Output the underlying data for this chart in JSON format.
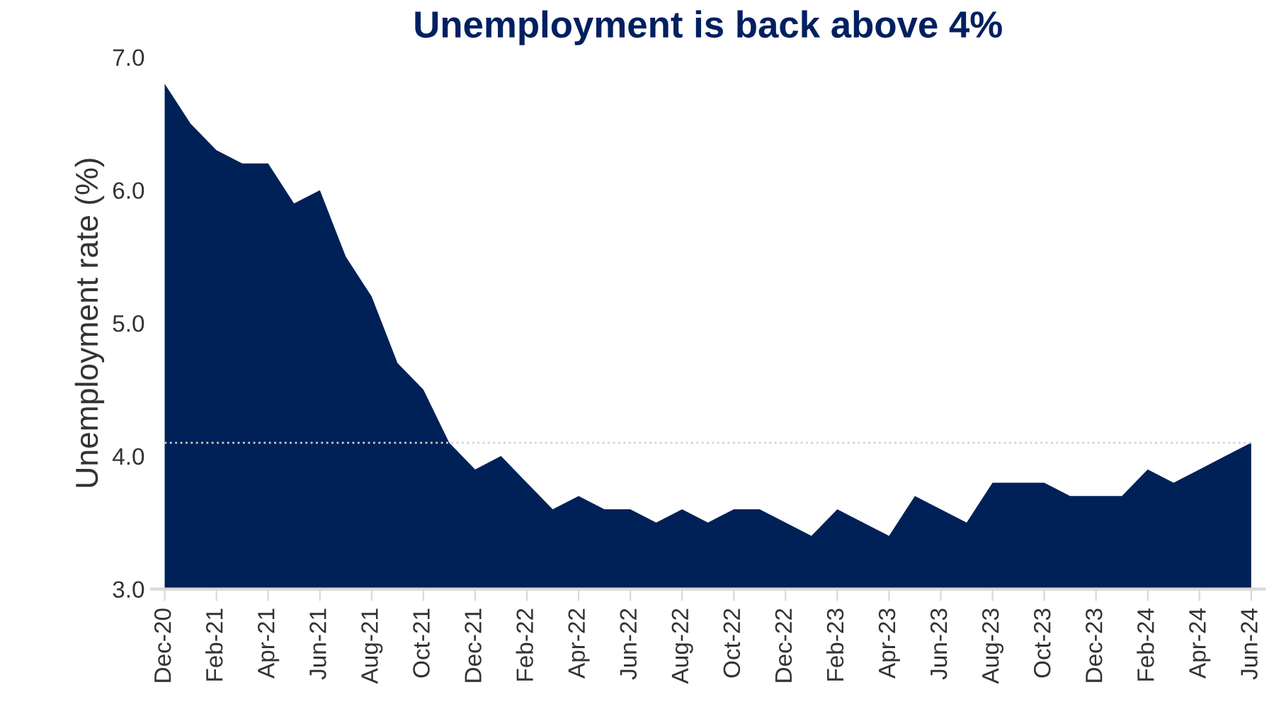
{
  "chart_data": {
    "type": "area",
    "title": "Unemployment is back above 4%",
    "ylabel": "Unemployment rate (%)",
    "categories": [
      "Dec-20",
      null,
      "Feb-21",
      null,
      "Apr-21",
      null,
      "Jun-21",
      null,
      "Aug-21",
      null,
      "Oct-21",
      null,
      "Dec-21",
      null,
      "Feb-22",
      null,
      "Apr-22",
      null,
      "Jun-22",
      null,
      "Aug-22",
      null,
      "Oct-22",
      null,
      "Dec-22",
      null,
      "Feb-23",
      null,
      "Apr-23",
      null,
      "Jun-23",
      null,
      "Aug-23",
      null,
      "Oct-23",
      null,
      "Dec-23",
      null,
      "Feb-24",
      null,
      "Apr-24",
      null,
      "Jun-24"
    ],
    "series": [
      {
        "color": "#002157",
        "values": [
          6.8,
          6.5,
          6.3,
          6.2,
          6.2,
          5.9,
          6.0,
          5.5,
          5.2,
          4.7,
          4.5,
          4.1,
          3.9,
          4.0,
          3.8,
          3.6,
          3.7,
          3.6,
          3.6,
          3.5,
          3.6,
          3.5,
          3.6,
          3.6,
          3.5,
          3.4,
          3.6,
          3.5,
          3.4,
          3.7,
          3.6,
          3.5,
          3.8,
          3.8,
          3.8,
          3.7,
          3.7,
          3.7,
          3.9,
          3.8,
          3.9,
          4.0,
          4.1
        ]
      }
    ],
    "ylim": [
      3.0,
      7.0
    ],
    "yticks": [
      {
        "value": 3,
        "label": "3.0"
      },
      {
        "value": 4,
        "label": "4.0"
      },
      {
        "value": 5,
        "label": "5.0"
      },
      {
        "value": 6,
        "label": "6.0"
      },
      {
        "value": 7,
        "label": "7.0"
      }
    ],
    "ref_lines": [
      {
        "axis": "y",
        "value": 4.1,
        "label": null,
        "color": "#d0d0d0",
        "line_style": "dotted"
      }
    ],
    "grid": false,
    "legend": false
  }
}
